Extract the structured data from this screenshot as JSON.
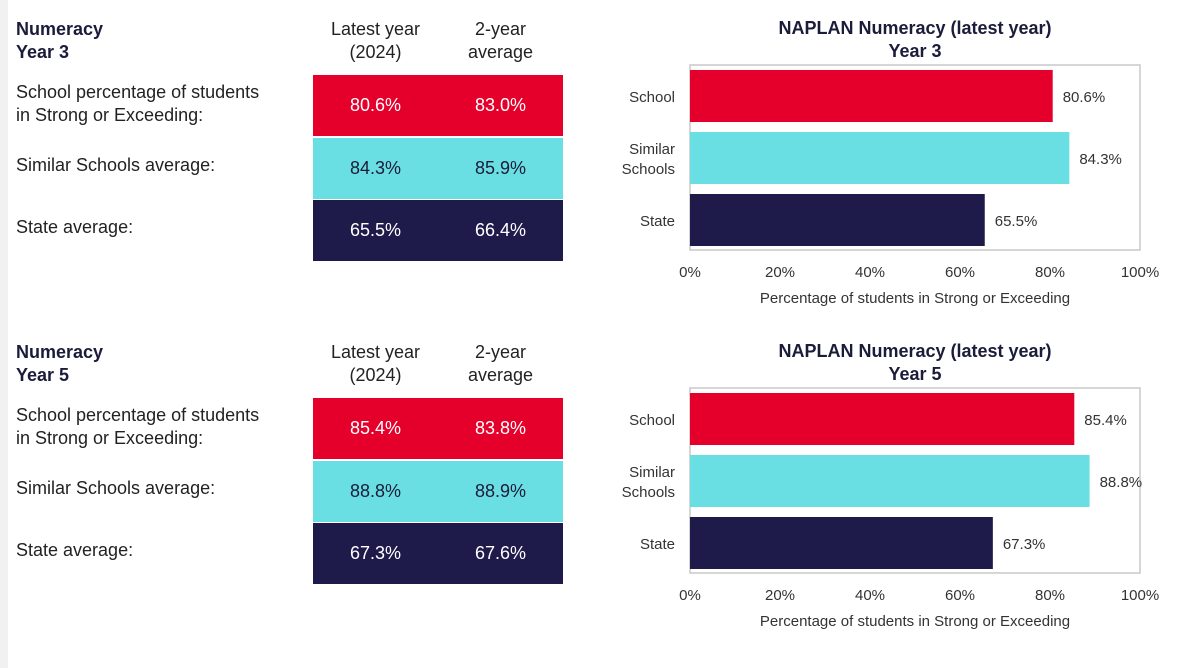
{
  "colors": {
    "school": "#e4002b",
    "similar": "#6adfe3",
    "state": "#1e1a4a"
  },
  "table_columns": [
    "Latest year",
    "(2024)",
    "2-year",
    "average"
  ],
  "row_labels": {
    "school": [
      "School percentage of students",
      "in Strong or Exceeding:"
    ],
    "similar": "Similar Schools average:",
    "state": "State average:"
  },
  "panels": [
    {
      "heading": [
        "Numeracy",
        "Year 3"
      ],
      "table": {
        "school": [
          "80.6%",
          "83.0%"
        ],
        "similar": [
          "84.3%",
          "85.9%"
        ],
        "state": [
          "65.5%",
          "66.4%"
        ]
      }
    },
    {
      "heading": [
        "Numeracy",
        "Year 5"
      ],
      "table": {
        "school": [
          "85.4%",
          "83.8%"
        ],
        "similar": [
          "88.8%",
          "88.9%"
        ],
        "state": [
          "67.3%",
          "67.6%"
        ]
      }
    }
  ],
  "chart_data": [
    {
      "type": "bar",
      "orientation": "horizontal",
      "title": "NAPLAN Numeracy (latest year)",
      "subtitle": "Year 3",
      "categories": [
        "School",
        "Similar Schools",
        "State"
      ],
      "values": [
        80.6,
        84.3,
        65.5
      ],
      "data_labels": [
        "80.6%",
        "84.3%",
        "65.5%"
      ],
      "xlabel": "Percentage of students in Strong or Exceeding",
      "xlim": [
        0,
        100
      ],
      "xticks": [
        "0%",
        "20%",
        "40%",
        "60%",
        "80%",
        "100%"
      ],
      "grid": false,
      "legend": "none"
    },
    {
      "type": "bar",
      "orientation": "horizontal",
      "title": "NAPLAN Numeracy (latest year)",
      "subtitle": "Year 5",
      "categories": [
        "School",
        "Similar Schools",
        "State"
      ],
      "values": [
        85.4,
        88.8,
        67.3
      ],
      "data_labels": [
        "85.4%",
        "88.8%",
        "67.3%"
      ],
      "xlabel": "Percentage of students in Strong or Exceeding",
      "xlim": [
        0,
        100
      ],
      "xticks": [
        "0%",
        "20%",
        "40%",
        "60%",
        "80%",
        "100%"
      ],
      "grid": false,
      "legend": "none"
    }
  ]
}
